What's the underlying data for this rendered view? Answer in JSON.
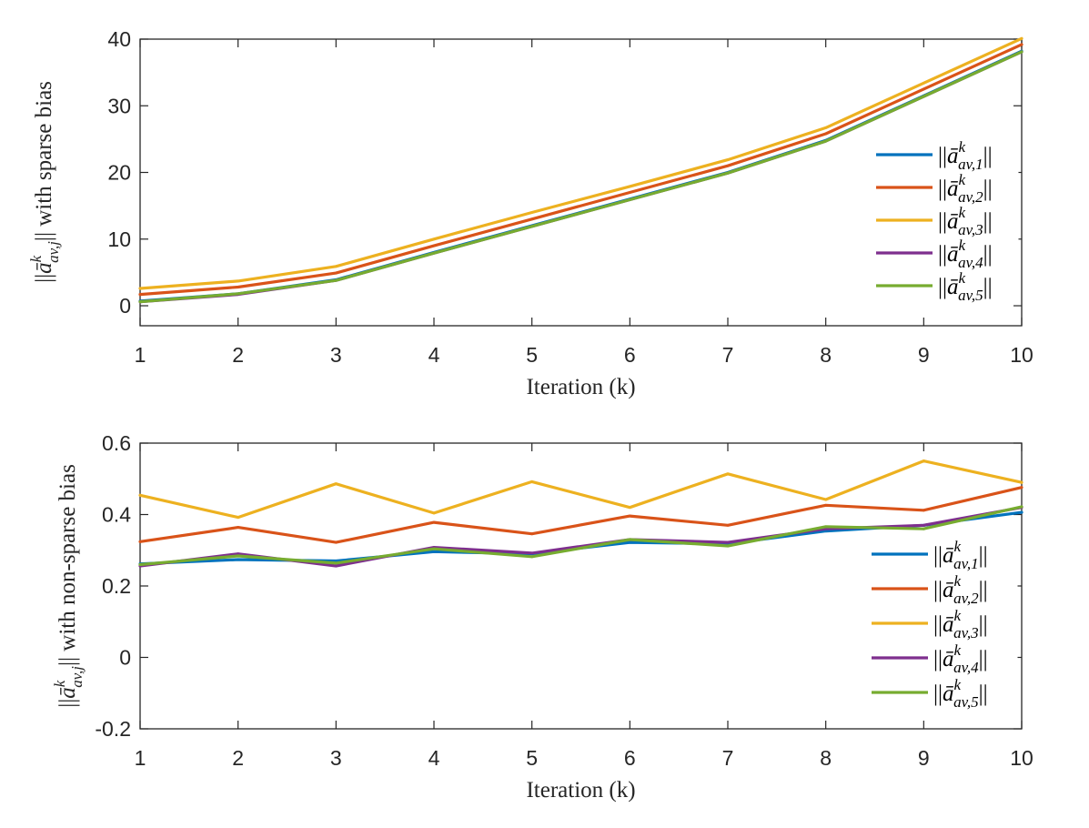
{
  "colors": [
    "#0072BD",
    "#D95319",
    "#EDB120",
    "#7E2F8E",
    "#77AC30"
  ],
  "chart_data": [
    {
      "type": "line",
      "title": "",
      "xlabel": "Iteration (k)",
      "ylabel": "||ā^k_{av,j}|| with sparse bias",
      "ylabel_parts": {
        "pre": "||",
        "base": "ā",
        "sup": "k",
        "sub": "av,j",
        "post": "|| with sparse bias"
      },
      "xlim": [
        1,
        10
      ],
      "ylim": [
        -3,
        40
      ],
      "xticks": [
        1,
        2,
        3,
        4,
        5,
        6,
        7,
        8,
        9,
        10
      ],
      "xtick_labels": [
        "1",
        "2",
        "3",
        "4",
        "5",
        "6",
        "7",
        "8",
        "9",
        "10"
      ],
      "yticks": [
        0,
        10,
        20,
        30,
        40
      ],
      "ytick_labels": [
        "0",
        "10",
        "20",
        "30",
        "40"
      ],
      "grid": false,
      "legend_position": "right",
      "x": [
        1,
        2,
        3,
        4,
        5,
        6,
        7,
        8,
        9,
        10
      ],
      "series": [
        {
          "name": "||ā^k_{av,1}||",
          "sub": "av,1",
          "values": [
            0.7,
            1.8,
            3.9,
            8.0,
            12.0,
            16.0,
            20.0,
            24.8,
            31.5,
            38.2
          ]
        },
        {
          "name": "||ā^k_{av,2}||",
          "sub": "av,2",
          "values": [
            1.7,
            2.8,
            4.9,
            9.0,
            13.0,
            17.0,
            21.0,
            25.8,
            32.5,
            39.2
          ]
        },
        {
          "name": "||ā^k_{av,3}||",
          "sub": "av,3",
          "values": [
            2.6,
            3.7,
            5.9,
            10.0,
            14.0,
            17.9,
            21.9,
            26.7,
            33.4,
            40.1
          ]
        },
        {
          "name": "||ā^k_{av,4}||",
          "sub": "av,4",
          "values": [
            0.6,
            1.7,
            3.8,
            7.9,
            11.9,
            15.9,
            19.9,
            24.7,
            31.4,
            38.1
          ]
        },
        {
          "name": "||ā^k_{av,5}||",
          "sub": "av,5",
          "values": [
            0.6,
            1.8,
            3.8,
            7.9,
            11.9,
            15.9,
            19.9,
            24.7,
            31.4,
            38.1
          ]
        }
      ]
    },
    {
      "type": "line",
      "title": "",
      "xlabel": "Iteration (k)",
      "ylabel": "||ā^k_{av,j}|| with non-sparse bias",
      "ylabel_parts": {
        "pre": "||",
        "base": "ā",
        "sup": "k",
        "sub": "av,j",
        "post": "|| with non-sparse bias"
      },
      "xlim": [
        1,
        10
      ],
      "ylim": [
        -0.2,
        0.6
      ],
      "xticks": [
        1,
        2,
        3,
        4,
        5,
        6,
        7,
        8,
        9,
        10
      ],
      "xtick_labels": [
        "1",
        "2",
        "3",
        "4",
        "5",
        "6",
        "7",
        "8",
        "9",
        "10"
      ],
      "yticks": [
        -0.2,
        0,
        0.2,
        0.4,
        0.6
      ],
      "ytick_labels": [
        "-0.2",
        "0",
        "0.2",
        "0.4",
        "0.6"
      ],
      "grid": false,
      "legend_position": "right",
      "x": [
        1,
        2,
        3,
        4,
        5,
        6,
        7,
        8,
        9,
        10
      ],
      "series": [
        {
          "name": "||ā^k_{av,1}||",
          "sub": "av,1",
          "values": [
            0.262,
            0.274,
            0.27,
            0.296,
            0.29,
            0.322,
            0.318,
            0.354,
            0.37,
            0.406
          ]
        },
        {
          "name": "||ā^k_{av,2}||",
          "sub": "av,2",
          "values": [
            0.324,
            0.364,
            0.322,
            0.378,
            0.346,
            0.396,
            0.37,
            0.426,
            0.412,
            0.476
          ]
        },
        {
          "name": "||ā^k_{av,3}||",
          "sub": "av,3",
          "values": [
            0.454,
            0.392,
            0.486,
            0.404,
            0.492,
            0.42,
            0.514,
            0.442,
            0.55,
            0.49
          ]
        },
        {
          "name": "||ā^k_{av,4}||",
          "sub": "av,4",
          "values": [
            0.256,
            0.29,
            0.256,
            0.308,
            0.292,
            0.33,
            0.322,
            0.36,
            0.37,
            0.42
          ]
        },
        {
          "name": "||ā^k_{av,5}||",
          "sub": "av,5",
          "values": [
            0.26,
            0.284,
            0.264,
            0.304,
            0.282,
            0.33,
            0.312,
            0.366,
            0.36,
            0.422
          ]
        }
      ]
    }
  ]
}
